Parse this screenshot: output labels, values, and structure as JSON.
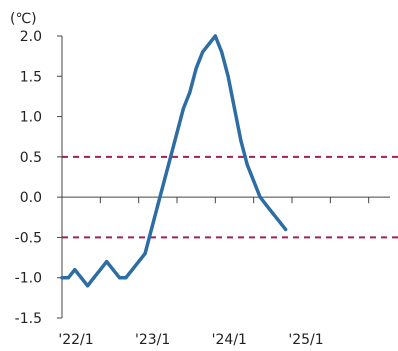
{
  "chart_data": {
    "type": "line",
    "unit_label": "(℃)",
    "ylim": [
      -1.5,
      2.0
    ],
    "yticks": [
      2.0,
      1.5,
      1.0,
      0.5,
      0.0,
      -0.5,
      -1.0,
      -1.5
    ],
    "ytick_labels": [
      "2.0",
      "1.5",
      "1.0",
      "0.5",
      "0.0",
      "-0.5",
      "-1.0",
      "-1.5"
    ],
    "xticks": [
      "'22/1",
      "'23/1",
      "'24/1",
      "'25/1"
    ],
    "reference_lines": [
      0.5,
      -0.5
    ],
    "grid": false,
    "series": [
      {
        "x": [
          "2022-01",
          "2022-02",
          "2022-03",
          "2022-04",
          "2022-05",
          "2022-06",
          "2022-07",
          "2022-08",
          "2022-09",
          "2022-10",
          "2022-11",
          "2022-12",
          "2023-01",
          "2023-02",
          "2023-03",
          "2023-04",
          "2023-05",
          "2023-06",
          "2023-07",
          "2023-08",
          "2023-09",
          "2023-10",
          "2023-11",
          "2023-12",
          "2024-01",
          "2024-02",
          "2024-03",
          "2024-04",
          "2024-05",
          "2024-06",
          "2024-07",
          "2024-08",
          "2024-09",
          "2024-10",
          "2024-11",
          "2024-12"
        ],
        "values": [
          -1.0,
          -1.0,
          -0.9,
          -1.0,
          -1.1,
          -1.0,
          -0.9,
          -0.8,
          -0.9,
          -1.0,
          -1.0,
          -0.9,
          -0.8,
          -0.7,
          -0.4,
          -0.1,
          0.2,
          0.5,
          0.8,
          1.1,
          1.3,
          1.6,
          1.8,
          1.9,
          2.0,
          1.8,
          1.5,
          1.1,
          0.7,
          0.4,
          0.2,
          0.0,
          -0.1,
          -0.2,
          -0.3,
          -0.4
        ]
      }
    ]
  },
  "colors": {
    "line": "#2e6da4",
    "reference": "#a0205a",
    "axis": "#444444"
  }
}
